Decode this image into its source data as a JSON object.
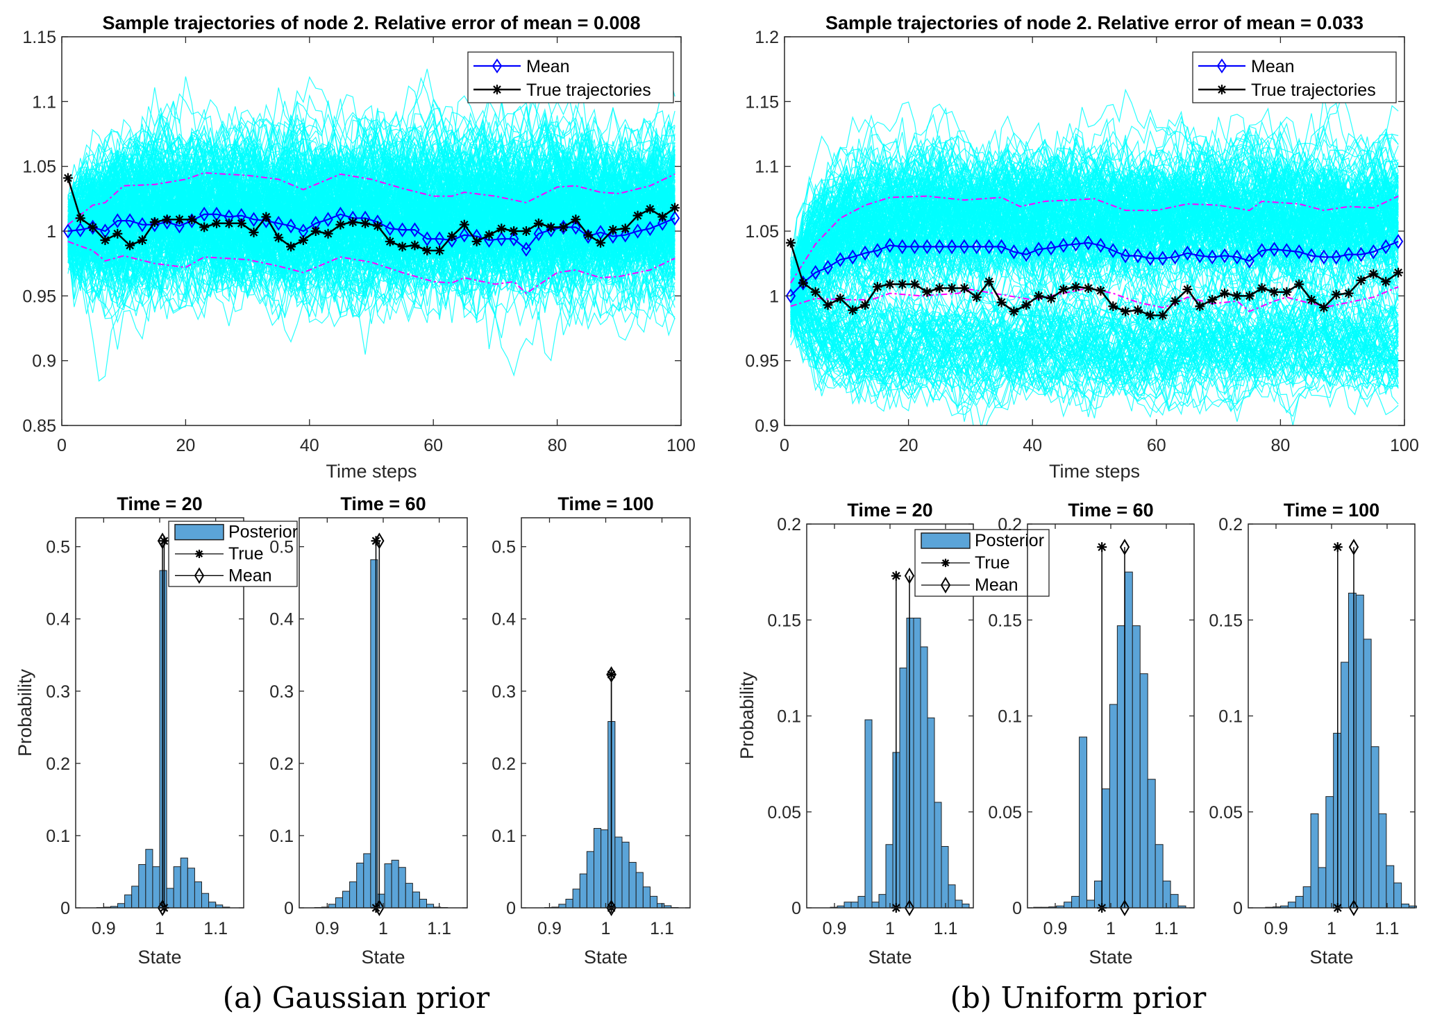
{
  "captions": [
    "(a) Gaussian prior",
    "(b) Uniform prior"
  ],
  "chart_data": [
    {
      "type": "line",
      "panel": "a",
      "title": "Sample trajectories of node 2. Relative error of mean = 0.008",
      "xlabel": "Time steps",
      "ylabel": "",
      "xlim": [
        0,
        100
      ],
      "ylim": [
        0.85,
        1.15
      ],
      "xticks": [
        "0",
        "20",
        "40",
        "60",
        "80",
        "100"
      ],
      "yticks": [
        "0.85",
        "0.9",
        "0.95",
        "1",
        "1.05",
        "1.1",
        "1.15"
      ],
      "legend": [
        "Mean",
        "True trajectories"
      ],
      "legend_position": "top-right",
      "colors": {
        "samples": "#00ffff",
        "mean": "#0000ff",
        "true": "#000000",
        "bounds": "#ff00ff"
      },
      "t": [
        1,
        3,
        5,
        7,
        9,
        11,
        13,
        15,
        17,
        19,
        21,
        23,
        25,
        27,
        29,
        31,
        33,
        35,
        37,
        39,
        41,
        43,
        45,
        47,
        49,
        51,
        53,
        55,
        57,
        59,
        61,
        63,
        65,
        67,
        69,
        71,
        73,
        75,
        77,
        79,
        81,
        83,
        85,
        87,
        89,
        91,
        93,
        95,
        97,
        99
      ],
      "mean": [
        1.0,
        1.001,
        1.003,
        1.0,
        1.008,
        1.008,
        1.005,
        1.005,
        1.007,
        1.004,
        1.008,
        1.013,
        1.013,
        1.011,
        1.012,
        1.009,
        1.008,
        1.006,
        1.004,
        1.0,
        1.006,
        1.009,
        1.013,
        1.01,
        1.01,
        1.007,
        1.002,
        1.001,
        1.001,
        0.994,
        0.994,
        0.993,
        0.997,
        0.996,
        0.993,
        0.994,
        0.994,
        0.986,
        0.998,
        1.001,
        1.003,
        1.003,
        0.996,
        0.999,
        0.996,
        0.997,
        1.0,
        1.002,
        1.006,
        1.01
      ],
      "true": [
        1.041,
        1.01,
        1.003,
        0.993,
        0.998,
        0.989,
        0.993,
        1.007,
        1.009,
        1.009,
        1.009,
        1.003,
        1.006,
        1.006,
        1.006,
        0.999,
        1.011,
        0.995,
        0.988,
        0.993,
        1.0,
        0.998,
        1.005,
        1.007,
        1.006,
        1.004,
        0.992,
        0.988,
        0.989,
        0.985,
        0.985,
        0.996,
        1.005,
        0.992,
        0.997,
        1.002,
        1.0,
        1.0,
        1.006,
        1.003,
        1.003,
        1.009,
        0.997,
        0.991,
        1.001,
        1.002,
        1.012,
        1.017,
        1.011,
        1.018
      ],
      "upper_bound": {
        "t": [
          1,
          5,
          7,
          10,
          15,
          20,
          23,
          30,
          35,
          39,
          45,
          50,
          55,
          60,
          63,
          65,
          70,
          75,
          80,
          83,
          87,
          90,
          95,
          99
        ],
        "values": [
          1.005,
          1.02,
          1.022,
          1.035,
          1.036,
          1.04,
          1.045,
          1.043,
          1.04,
          1.032,
          1.044,
          1.04,
          1.033,
          1.027,
          1.027,
          1.03,
          1.027,
          1.022,
          1.034,
          1.035,
          1.03,
          1.029,
          1.035,
          1.044
        ]
      },
      "lower_bound": {
        "t": [
          1,
          5,
          7,
          10,
          15,
          20,
          23,
          30,
          35,
          39,
          45,
          50,
          55,
          60,
          63,
          65,
          70,
          73,
          75,
          80,
          83,
          87,
          90,
          95,
          99
        ],
        "values": [
          0.992,
          0.985,
          0.977,
          0.981,
          0.975,
          0.972,
          0.98,
          0.978,
          0.973,
          0.968,
          0.98,
          0.976,
          0.968,
          0.961,
          0.96,
          0.964,
          0.959,
          0.961,
          0.952,
          0.968,
          0.97,
          0.964,
          0.965,
          0.97,
          0.979
        ]
      }
    },
    {
      "type": "line",
      "panel": "b",
      "title": "Sample trajectories of node 2. Relative error of mean = 0.033",
      "xlabel": "Time steps",
      "ylabel": "",
      "xlim": [
        0,
        100
      ],
      "ylim": [
        0.9,
        1.2
      ],
      "xticks": [
        "0",
        "20",
        "40",
        "60",
        "80",
        "100"
      ],
      "yticks": [
        "0.9",
        "0.95",
        "1",
        "1.05",
        "1.1",
        "1.15",
        "1.2"
      ],
      "legend": [
        "Mean",
        "True trajectories"
      ],
      "legend_position": "top-right",
      "colors": {
        "samples": "#00ffff",
        "mean": "#0000ff",
        "true": "#000000",
        "bounds": "#ff00ff"
      },
      "t": [
        1,
        3,
        5,
        7,
        9,
        11,
        13,
        15,
        17,
        19,
        21,
        23,
        25,
        27,
        29,
        31,
        33,
        35,
        37,
        39,
        41,
        43,
        45,
        47,
        49,
        51,
        53,
        55,
        57,
        59,
        61,
        63,
        65,
        67,
        69,
        71,
        73,
        75,
        77,
        79,
        81,
        83,
        85,
        87,
        89,
        91,
        93,
        95,
        97,
        99
      ],
      "mean": [
        1.0,
        1.01,
        1.018,
        1.022,
        1.028,
        1.03,
        1.033,
        1.035,
        1.039,
        1.038,
        1.038,
        1.038,
        1.038,
        1.038,
        1.038,
        1.038,
        1.038,
        1.038,
        1.034,
        1.032,
        1.036,
        1.037,
        1.039,
        1.04,
        1.041,
        1.039,
        1.035,
        1.031,
        1.031,
        1.029,
        1.029,
        1.03,
        1.033,
        1.031,
        1.03,
        1.031,
        1.03,
        1.027,
        1.035,
        1.036,
        1.035,
        1.034,
        1.031,
        1.03,
        1.03,
        1.032,
        1.032,
        1.034,
        1.038,
        1.042
      ],
      "true": [
        1.041,
        1.01,
        1.003,
        0.993,
        0.998,
        0.989,
        0.993,
        1.007,
        1.009,
        1.009,
        1.009,
        1.003,
        1.006,
        1.006,
        1.006,
        0.999,
        1.011,
        0.995,
        0.988,
        0.993,
        1.0,
        0.998,
        1.005,
        1.007,
        1.006,
        1.004,
        0.992,
        0.988,
        0.989,
        0.985,
        0.985,
        0.996,
        1.005,
        0.992,
        0.997,
        1.002,
        1.0,
        1.0,
        1.006,
        1.003,
        1.003,
        1.009,
        0.997,
        0.991,
        1.001,
        1.002,
        1.012,
        1.017,
        1.011,
        1.018
      ],
      "upper_bound": {
        "t": [
          1,
          5,
          9,
          13,
          17,
          23,
          29,
          35,
          38,
          42,
          50,
          55,
          60,
          65,
          70,
          75,
          77,
          83,
          87,
          91,
          95,
          99
        ],
        "values": [
          1.01,
          1.04,
          1.06,
          1.07,
          1.076,
          1.077,
          1.074,
          1.076,
          1.069,
          1.073,
          1.075,
          1.066,
          1.066,
          1.071,
          1.07,
          1.066,
          1.073,
          1.071,
          1.066,
          1.069,
          1.068,
          1.077
        ]
      },
      "lower_bound": {
        "t": [
          1,
          5,
          10,
          14,
          17,
          22,
          28,
          30,
          35,
          40,
          45,
          49,
          53,
          57,
          61,
          63,
          65,
          69,
          73,
          75,
          79,
          81,
          85,
          88,
          91,
          95,
          99
        ],
        "values": [
          0.992,
          0.998,
          0.997,
          0.997,
          1.002,
          1.0,
          1.002,
          1.005,
          1.001,
          0.997,
          1.002,
          1.006,
          1.002,
          0.995,
          0.991,
          0.994,
          0.999,
          0.994,
          0.996,
          0.988,
          0.996,
          0.999,
          0.994,
          0.992,
          0.995,
          0.999,
          1.007
        ]
      }
    },
    {
      "type": "bar",
      "panel": "a",
      "title": "Time = 20",
      "xlabel": "State",
      "ylabel": "Probability",
      "xlim": [
        0.85,
        1.15
      ],
      "ylim": [
        0,
        0.54
      ],
      "xticks": [
        "0.9",
        "1",
        "1.1"
      ],
      "yticks": [
        "0",
        "0.1",
        "0.2",
        "0.3",
        "0.4",
        "0.5"
      ],
      "legend": [
        "Posterior",
        "True",
        "Mean"
      ],
      "bin_start": 0.875,
      "bin_width": 0.0125,
      "values": [
        0,
        0.0005,
        0.001,
        0.002,
        0.006,
        0.018,
        0.03,
        0.06,
        0.081,
        0.057,
        0.467,
        0.027,
        0.057,
        0.069,
        0.055,
        0.036,
        0.02,
        0.008,
        0.004,
        0.001
      ],
      "true_value": 1.008,
      "mean_value": 1.005,
      "marker_height": 0.508,
      "colors": {
        "bars": "#5ba4d8"
      }
    },
    {
      "type": "bar",
      "panel": "a",
      "title": "Time = 60",
      "xlabel": "State",
      "ylabel": "",
      "xlim": [
        0.85,
        1.15
      ],
      "ylim": [
        0,
        0.54
      ],
      "xticks": [
        "0.9",
        "1",
        "1.1"
      ],
      "yticks": [
        "0",
        "0.1",
        "0.2",
        "0.3",
        "0.4",
        "0.5"
      ],
      "bin_start": 0.8775,
      "bin_width": 0.0125,
      "values": [
        0.0005,
        0.001,
        0.005,
        0.014,
        0.023,
        0.036,
        0.062,
        0.075,
        0.482,
        0.019,
        0.061,
        0.066,
        0.056,
        0.034,
        0.022,
        0.012,
        0.005,
        0.001,
        0.0005
      ],
      "true_value": 0.987,
      "mean_value": 0.993,
      "marker_height": 0.508,
      "colors": {
        "bars": "#5ba4d8"
      }
    },
    {
      "type": "bar",
      "panel": "a",
      "title": "Time = 100",
      "xlabel": "State",
      "ylabel": "",
      "xlim": [
        0.85,
        1.15
      ],
      "ylim": [
        0,
        0.54
      ],
      "xticks": [
        "0.9",
        "1",
        "1.1"
      ],
      "yticks": [
        "0",
        "0.1",
        "0.2",
        "0.3",
        "0.4",
        "0.5"
      ],
      "bin_start": 0.8915,
      "bin_width": 0.0125,
      "values": [
        0.0005,
        0.001,
        0.005,
        0.012,
        0.026,
        0.047,
        0.078,
        0.11,
        0.108,
        0.258,
        0.098,
        0.091,
        0.063,
        0.049,
        0.029,
        0.016,
        0.006,
        0.003,
        0.0005
      ],
      "true_value": 1.01,
      "mean_value": 1.01,
      "marker_height": 0.323,
      "colors": {
        "bars": "#5ba4d8"
      }
    },
    {
      "type": "bar",
      "panel": "b",
      "title": "Time = 20",
      "xlabel": "State",
      "ylabel": "Probability",
      "xlim": [
        0.85,
        1.15
      ],
      "ylim": [
        0,
        0.2
      ],
      "xticks": [
        "0.9",
        "1",
        "1.1"
      ],
      "yticks": [
        "0",
        "0.05",
        "0.1",
        "0.15",
        "0.2"
      ],
      "legend": [
        "Posterior",
        "True",
        "Mean"
      ],
      "bin_start": 0.8925,
      "bin_width": 0.0125,
      "values": [
        0.0003,
        0.001,
        0.003,
        0.003,
        0.006,
        0.098,
        0.003,
        0.007,
        0.033,
        0.081,
        0.125,
        0.151,
        0.151,
        0.136,
        0.099,
        0.055,
        0.032,
        0.012,
        0.004,
        0.002
      ],
      "true_value": 1.011,
      "mean_value": 1.035,
      "marker_height": 0.173,
      "colors": {
        "bars": "#5ba4d8"
      }
    },
    {
      "type": "bar",
      "panel": "b",
      "title": "Time = 60",
      "xlabel": "State",
      "ylabel": "",
      "xlim": [
        0.85,
        1.15
      ],
      "ylim": [
        0,
        0.2
      ],
      "xticks": [
        "0.9",
        "1",
        "1.1"
      ],
      "yticks": [
        "0",
        "0.05",
        "0.1",
        "0.15",
        "0.2"
      ],
      "bin_start": 0.861,
      "bin_width": 0.0137,
      "values": [
        0.0003,
        0.0003,
        0.0005,
        0.001,
        0.003,
        0.006,
        0.089,
        0.004,
        0.014,
        0.062,
        0.106,
        0.147,
        0.175,
        0.147,
        0.122,
        0.067,
        0.033,
        0.014,
        0.007,
        0.001
      ],
      "true_value": 0.984,
      "mean_value": 1.025,
      "marker_height": 0.188,
      "colors": {
        "bars": "#5ba4d8"
      }
    },
    {
      "type": "bar",
      "panel": "b",
      "title": "Time = 100",
      "xlabel": "State",
      "ylabel": "",
      "xlim": [
        0.85,
        1.15
      ],
      "ylim": [
        0,
        0.2
      ],
      "xticks": [
        "0.9",
        "1",
        "1.1"
      ],
      "yticks": [
        "0",
        "0.05",
        "0.1",
        "0.15",
        "0.2"
      ],
      "bin_start": 0.881,
      "bin_width": 0.0136,
      "values": [
        0.0003,
        0.0005,
        0.001,
        0.003,
        0.006,
        0.011,
        0.049,
        0.021,
        0.058,
        0.091,
        0.128,
        0.164,
        0.163,
        0.14,
        0.084,
        0.049,
        0.022,
        0.013,
        0.002,
        0.001
      ],
      "true_value": 1.011,
      "mean_value": 1.04,
      "marker_height": 0.188,
      "colors": {
        "bars": "#5ba4d8"
      }
    }
  ]
}
